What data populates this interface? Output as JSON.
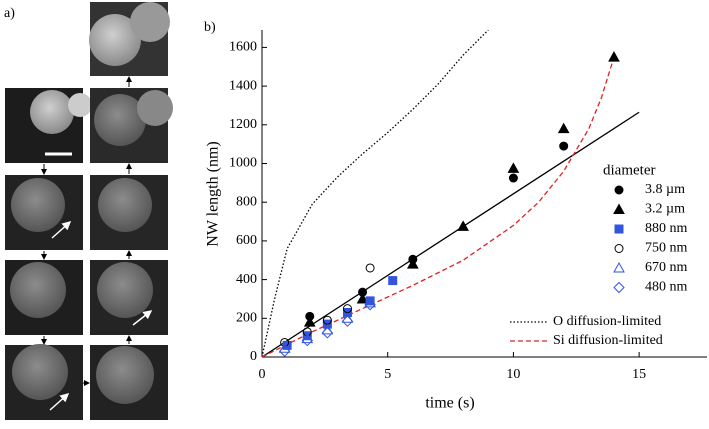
{
  "panel_a": {
    "label": "a)"
  },
  "chart_data": {
    "type": "scatter",
    "panel_label": "b)",
    "xlabel": "time (s)",
    "ylabel": "NW length (nm)",
    "xlim": [
      0,
      17.7
    ],
    "ylim": [
      0,
      1690
    ],
    "xticks": [
      0,
      5,
      10,
      15
    ],
    "yticks": [
      0,
      200,
      400,
      600,
      800,
      1000,
      1200,
      1400,
      1600
    ],
    "legend_title": "diameter",
    "series": [
      {
        "name": "3.8  µm",
        "kind": "points",
        "marker": "circle",
        "filled": true,
        "color": "#000000",
        "x": [
          1.9,
          4,
          6,
          10,
          12
        ],
        "values": [
          210,
          335,
          505,
          925,
          1090
        ]
      },
      {
        "name": "3.2  µm",
        "kind": "points",
        "marker": "triangle",
        "filled": true,
        "color": "#000000",
        "x": [
          1.9,
          4,
          6,
          8,
          10,
          12,
          14
        ],
        "values": [
          180,
          300,
          480,
          675,
          975,
          1180,
          1550
        ]
      },
      {
        "name": "880 nm",
        "kind": "points",
        "marker": "square",
        "filled": true,
        "color": "#3355dd",
        "x": [
          1,
          1.8,
          2.6,
          3.4,
          4.3,
          5.2
        ],
        "values": [
          60,
          110,
          170,
          230,
          290,
          395
        ]
      },
      {
        "name": "750 nm",
        "kind": "points",
        "marker": "circle",
        "filled": false,
        "color": "#000000",
        "x": [
          0.9,
          1.8,
          2.6,
          3.4,
          4.3
        ],
        "values": [
          75,
          130,
          190,
          250,
          460
        ]
      },
      {
        "name": "670 nm",
        "kind": "points",
        "marker": "triangle",
        "filled": false,
        "color": "#3355dd",
        "x": [
          0.9,
          1.8,
          2.6,
          3.4,
          4.3
        ],
        "values": [
          45,
          95,
          140,
          200,
          280
        ]
      },
      {
        "name": "480 nm",
        "kind": "points",
        "marker": "diamond",
        "filled": false,
        "color": "#3355dd",
        "x": [
          0.9,
          1.8,
          2.6,
          3.4,
          4.3
        ],
        "values": [
          30,
          85,
          125,
          185,
          270
        ]
      },
      {
        "kind": "line",
        "dash": "solid",
        "color": "#000000",
        "x": [
          0,
          15
        ],
        "values": [
          0,
          1265
        ]
      },
      {
        "name": "O  diffusion-limited",
        "kind": "line",
        "dash": "dotted",
        "color": "#000000",
        "x": [
          0,
          0.5,
          1,
          2,
          3,
          4,
          5,
          6,
          7,
          8,
          9
        ],
        "values": [
          0,
          300,
          560,
          790,
          930,
          1050,
          1160,
          1280,
          1410,
          1560,
          1690
        ]
      },
      {
        "name": "Si diffusion-limited",
        "kind": "line",
        "dash": "dashed",
        "color": "#e02020",
        "x": [
          0,
          2,
          4,
          6,
          8,
          10,
          11,
          12,
          13,
          13.5,
          14
        ],
        "values": [
          0,
          130,
          250,
          370,
          500,
          680,
          800,
          960,
          1180,
          1340,
          1550
        ]
      }
    ]
  }
}
